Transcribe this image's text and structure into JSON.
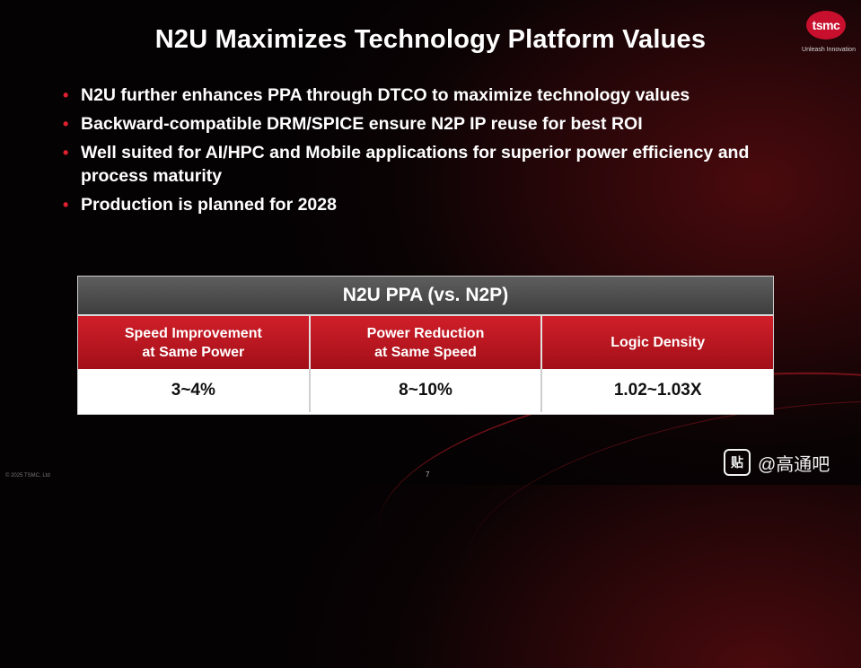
{
  "slide": {
    "title": "N2U Maximizes Technology Platform Values",
    "logo": {
      "text": "tsmc",
      "tagline": "Unleash Innovation"
    },
    "bullets": [
      "N2U further enhances PPA through DTCO to maximize technology values",
      "Backward-compatible DRM/SPICE ensure N2P IP reuse for best ROI",
      "Well suited for AI/HPC and Mobile applications for superior power efficiency and process maturity",
      "Production is planned for 2028"
    ],
    "bullet_marker": "•",
    "page_number": "7",
    "footer_left": "© 2025 TSMC, Ltd"
  },
  "table": {
    "title": "N2U PPA (vs. N2P)",
    "headers": [
      {
        "line1": "Speed Improvement",
        "line2": "at Same Power"
      },
      {
        "line1": "Power Reduction",
        "line2": "at Same Speed"
      },
      {
        "line1": "Logic Density",
        "line2": ""
      }
    ],
    "values": [
      "3~4%",
      "8~10%",
      "1.02~1.03X"
    ]
  },
  "watermark": {
    "icon": "贴",
    "text": "@高通吧"
  },
  "colors": {
    "accent_red": "#c8102e",
    "table_header_gray": "#4a4a4a",
    "bullet_red": "#e02030"
  }
}
